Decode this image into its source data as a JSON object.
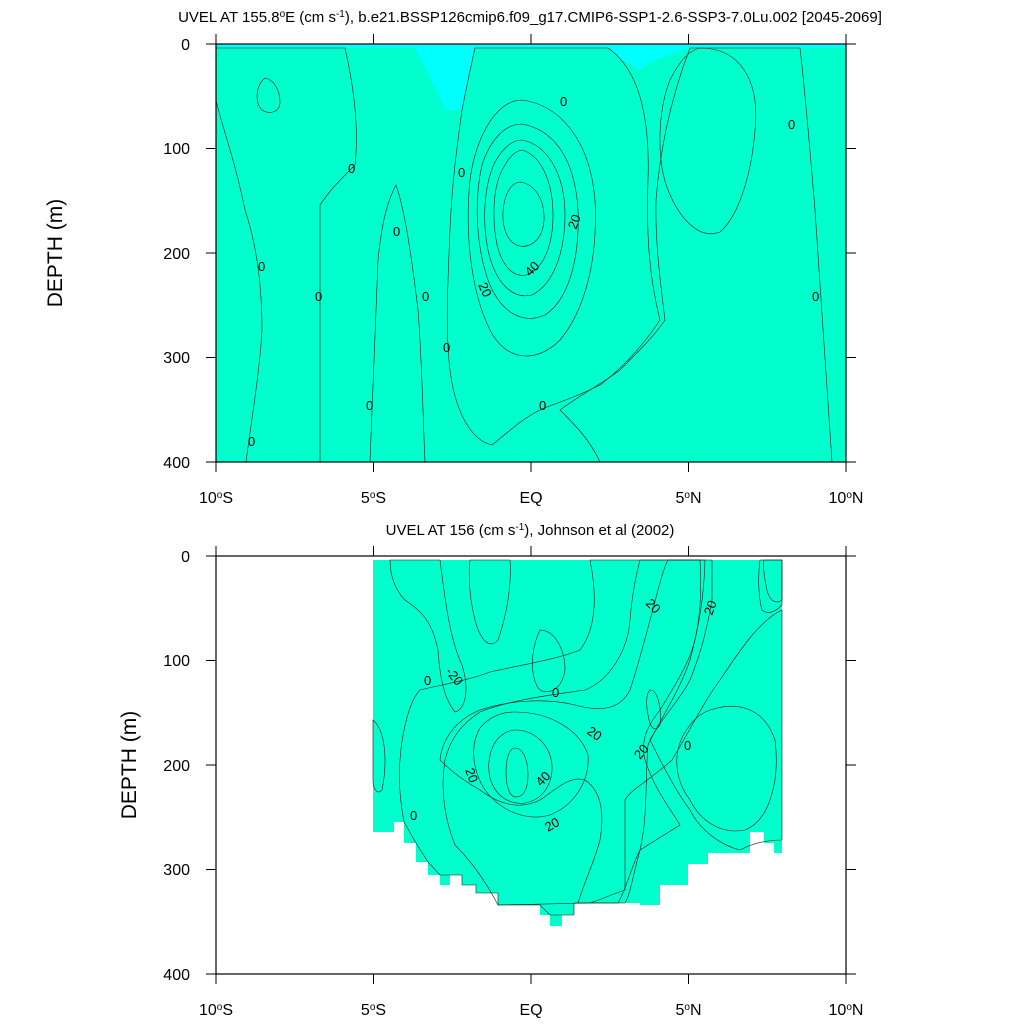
{
  "colors": {
    "lt_m20": "#00ffff",
    "m20_0": "#00ffcc",
    "0_10": "#33ff00",
    "10_20": "#99ff33",
    "20_30": "#ffff00",
    "30_40": "#ffcc33",
    "40_50": "#ffaa33",
    "gt_50": "#ff8822"
  },
  "chart_data": [
    {
      "type": "contour",
      "title_pre": "UVEL AT 155.8",
      "title_deg": "o",
      "title_mid": "E (cm s",
      "title_sup": "-1",
      "title_post": "), b.e21.BSSP126cmip6.f09_g17.CMIP6-SSP1-2.6-SSP3-7.0Lu.002 [2045-2069]",
      "ylabel": "DEPTH (m)",
      "xlim": [
        -10,
        10
      ],
      "ylim": [
        400,
        0
      ],
      "x_ticks": [
        {
          "n": "10",
          "sup": "o",
          "s": "S"
        },
        {
          "n": "5",
          "sup": "o",
          "s": "S"
        },
        {
          "n": "EQ",
          "sup": "",
          "s": ""
        },
        {
          "n": "5",
          "sup": "o",
          "s": "N"
        },
        {
          "n": "10",
          "sup": "o",
          "s": "N"
        }
      ],
      "y_ticks": [
        "0",
        "100",
        "200",
        "300",
        "400"
      ],
      "contour_labels": [
        "0",
        "0",
        "0",
        "0",
        "0",
        "0",
        "0",
        "0",
        "0",
        "0",
        "0",
        "0",
        "20",
        "40",
        "20"
      ]
    },
    {
      "type": "contour",
      "title_pre": "UVEL AT 156 (cm s",
      "title_sup": "-1",
      "title_post": "), Johnson et al (2002)",
      "ylabel": "DEPTH (m)",
      "xlim": [
        -10,
        10
      ],
      "ylim": [
        400,
        0
      ],
      "x_ticks": [
        {
          "n": "10",
          "sup": "o",
          "s": "S"
        },
        {
          "n": "5",
          "sup": "o",
          "s": "S"
        },
        {
          "n": "EQ",
          "sup": "",
          "s": ""
        },
        {
          "n": "5",
          "sup": "o",
          "s": "N"
        },
        {
          "n": "10",
          "sup": "o",
          "s": "N"
        }
      ],
      "y_ticks": [
        "0",
        "100",
        "200",
        "300",
        "400"
      ],
      "contour_labels": [
        "-20",
        "0",
        "0",
        "0",
        "20",
        "20",
        "20",
        "20",
        "20",
        "20",
        "20",
        "40",
        "0"
      ]
    }
  ]
}
